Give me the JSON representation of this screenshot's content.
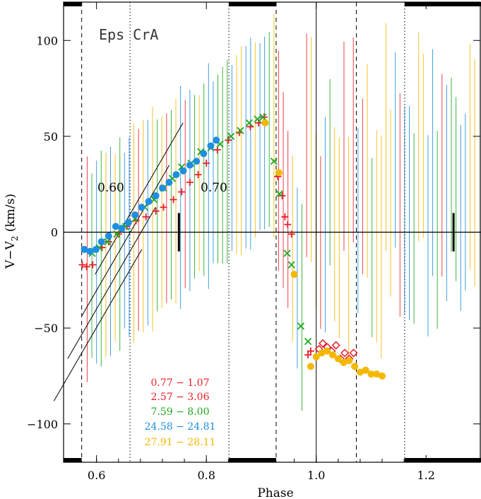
{
  "chart_data": {
    "type": "scatter",
    "title": "Eps CrA",
    "xlabel": "Phase",
    "ylabel_main": "V−V",
    "ylabel_sub": "2",
    "ylabel_unit": " (km/s)",
    "xlim": [
      0.54,
      1.3
    ],
    "ylim": [
      -120,
      120
    ],
    "xticks": [
      0.6,
      0.8,
      1.0,
      1.2
    ],
    "xtick_labels": [
      "0.6",
      "0.8",
      "1.0",
      "1.2"
    ],
    "yticks": [
      -100,
      -50,
      0,
      50,
      100
    ],
    "ytick_labels": [
      "−100",
      "−50",
      "0",
      "50",
      "100"
    ],
    "zero_line": 0,
    "eclipse_lines": {
      "dashed": [
        0.573,
        0.927,
        1.073
      ],
      "dotted": [
        0.661,
        0.841,
        1.161
      ],
      "solid": [
        1.0
      ]
    },
    "eclipse_bars": [
      [
        0.54,
        0.573
      ],
      [
        0.841,
        0.927
      ],
      [
        1.161,
        1.3
      ]
    ],
    "quarter_marks": [
      0.75,
      1.25
    ],
    "slope_lines": [
      {
        "label": "0.60",
        "x0": 0.585,
        "x1": 0.745,
        "y0": -33,
        "offsets": [
          -25,
          -15,
          -5,
          5
        ]
      },
      {
        "label": "0.70"
      }
    ],
    "series": [
      {
        "name": "0.77 − 1.07",
        "color": "#e8202a",
        "marker": "plus",
        "x": [
          0.574,
          0.582,
          0.593,
          0.61,
          0.622,
          0.64,
          0.655,
          0.672,
          0.69,
          0.708,
          0.722,
          0.74,
          0.755,
          0.77,
          0.785,
          0.8,
          0.82,
          0.84,
          0.86,
          0.88,
          0.895,
          0.905,
          0.93,
          0.938,
          0.943,
          0.948,
          0.955,
          0.985,
          0.99
        ],
        "y": [
          -17,
          -18,
          -17,
          -8,
          -5,
          -1,
          3,
          6,
          8,
          11,
          13,
          17,
          21,
          26,
          30,
          36,
          43,
          48,
          52,
          55,
          57,
          60,
          29,
          19,
          8,
          4,
          -1,
          -64,
          -62
        ]
      },
      {
        "name": "2.57 − 3.06",
        "color": "#e8202a",
        "marker": "diamond",
        "x": [
          1.005,
          1.012,
          1.02,
          1.028,
          1.036,
          1.044,
          1.052,
          1.06,
          1.068
        ],
        "y": [
          -61,
          -58,
          -60,
          -62,
          -59,
          -66,
          -63,
          -66,
          -63
        ]
      },
      {
        "name": "7.59 − 8.00",
        "color": "#1ea81e",
        "marker": "cross",
        "x": [
          0.592,
          0.605,
          0.62,
          0.637,
          0.653,
          0.67,
          0.688,
          0.705,
          0.722,
          0.738,
          0.755,
          0.772,
          0.79,
          0.808,
          0.825,
          0.845,
          0.862,
          0.878,
          0.893,
          0.903,
          0.923,
          0.933,
          0.947,
          0.955,
          0.972,
          0.985
        ],
        "y": [
          -11,
          -8,
          -5,
          -1,
          3,
          7,
          13,
          17,
          23,
          28,
          34,
          36,
          42,
          44,
          46,
          50,
          53,
          57,
          59,
          60,
          37,
          20,
          -11,
          -17,
          -49,
          -57
        ]
      },
      {
        "name": "24.58 − 24.81",
        "color": "#1e8ee0",
        "marker": "circle",
        "x": [
          0.578,
          0.588,
          0.599,
          0.609,
          0.622,
          0.635,
          0.646,
          0.658,
          0.67,
          0.682,
          0.695,
          0.708,
          0.72,
          0.732,
          0.745,
          0.758,
          0.77,
          0.782,
          0.795,
          0.808,
          0.818
        ],
        "y": [
          -9,
          -10,
          -9,
          -5,
          -2,
          3,
          2,
          5,
          9,
          13,
          16,
          19,
          23,
          26,
          30,
          32,
          35,
          37,
          41,
          45,
          48
        ]
      },
      {
        "name": "27.91 − 28.11",
        "color": "#f5b800",
        "marker": "dot",
        "x": [
          0.907,
          0.932,
          0.96,
          0.99,
          1.0,
          1.01,
          1.02,
          1.03,
          1.04,
          1.05,
          1.06,
          1.07,
          1.08,
          1.09,
          1.1,
          1.11,
          1.12
        ],
        "y": [
          57,
          31,
          -22,
          -70,
          -65,
          -63,
          -62,
          -64,
          -66,
          -68,
          -67,
          -70,
          -73,
          -72,
          -74,
          -74,
          -75
        ]
      }
    ],
    "background_error_bars": {
      "colors": [
        "#e8202a",
        "#1ea81e",
        "#1e8ee0",
        "#f5b800"
      ],
      "half_length": [
        45,
        60
      ],
      "note_values": "vertical uncertainty bars spanning most of the y range"
    }
  },
  "legend": {
    "entries": [
      {
        "text": "0.77 − 1.07",
        "color": "#e8202a"
      },
      {
        "text": "2.57 − 3.06",
        "color": "#e8202a"
      },
      {
        "text": "7.59 − 8.00",
        "color": "#1ea81e"
      },
      {
        "text": "24.58 − 24.81",
        "color": "#1e8ee0"
      },
      {
        "text": "27.91 − 28.11",
        "color": "#f5b800"
      }
    ]
  }
}
